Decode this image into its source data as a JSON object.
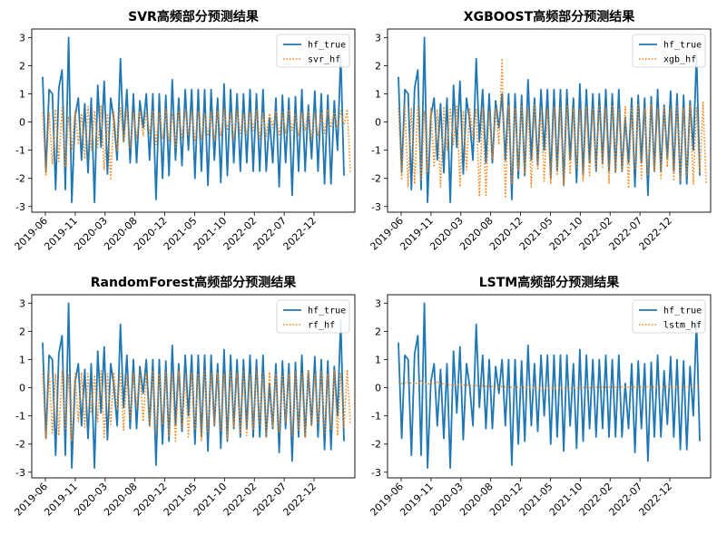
{
  "chart_data": [
    {
      "type": "line",
      "title": "SVR高频部分预测结果",
      "xlabel": "",
      "ylabel": "",
      "ylim": [
        -3.2,
        3.3
      ],
      "yticks": [
        -3,
        -2,
        -1,
        0,
        1,
        2,
        3
      ],
      "x_tick_labels": [
        "2019-06",
        "2019-11",
        "2020-03",
        "2020-08",
        "2020-12",
        "2021-05",
        "2021-10",
        "2022-02",
        "2022-07",
        "2022-12"
      ],
      "legend": "top-right",
      "series": [
        {
          "name": "hf_true",
          "style": "solid",
          "color": "#1f77b4",
          "values": [
            1.6,
            -1.8,
            1.15,
            1.0,
            -2.4,
            1.2,
            1.85,
            -2.4,
            3.0,
            -2.85,
            0.2,
            0.85,
            -1.35,
            0.65,
            -1.8,
            0.85,
            -2.85,
            1.3,
            -0.9,
            1.45,
            -1.85,
            0.85,
            0.05,
            -1.35,
            2.25,
            -0.7,
            1.15,
            -1.45,
            1.0,
            -1.45,
            0.75,
            -0.2,
            1.0,
            -1.35,
            1.0,
            -2.75,
            1.0,
            -2.0,
            0.95,
            -1.9,
            1.5,
            -1.35,
            0.85,
            -1.55,
            1.15,
            -1.0,
            1.15,
            -2.0,
            1.15,
            -1.75,
            1.15,
            -2.25,
            1.15,
            -1.35,
            0.85,
            -2.15,
            1.35,
            -1.9,
            1.15,
            -1.45,
            1.0,
            -1.75,
            1.0,
            -1.45,
            1.15,
            -1.75,
            1.0,
            -1.75,
            1.15,
            -1.75,
            0.15,
            -1.45,
            0.85,
            -2.3,
            0.95,
            -1.45,
            0.85,
            -2.6,
            0.9,
            -1.75,
            1.15,
            -1.75,
            0.6,
            -1.3,
            1.1,
            -1.75,
            1.0,
            -2.2,
            0.95,
            -2.2,
            0.75,
            -1.0,
            2.4,
            -1.9
          ]
        },
        {
          "name": "svr_hf",
          "style": "dotted",
          "color": "#ff7f0e",
          "values": [
            0.35,
            -1.9,
            0.35,
            -1.5,
            0.45,
            -1.4,
            0.5,
            -1.6,
            0.2,
            -1.0,
            0.4,
            -0.8,
            0.3,
            -1.3,
            0.55,
            -1.0,
            0.4,
            -0.9,
            0.6,
            -1.7,
            0.3,
            -2.05,
            0.35,
            -1.0,
            0.5,
            -0.7,
            0.45,
            -0.9,
            0.35,
            -0.6,
            0.4,
            -0.5,
            0.35,
            -0.4,
            0.4,
            -0.8,
            0.35,
            -0.6,
            0.45,
            -0.7,
            0.3,
            -0.9,
            0.4,
            -0.6,
            0.45,
            -0.5,
            0.35,
            -0.7,
            0.4,
            -0.6,
            0.3,
            -0.5,
            0.35,
            -0.7,
            0.4,
            -0.5,
            0.45,
            -0.3,
            0.35,
            -0.6,
            0.4,
            -0.4,
            0.3,
            -0.5,
            0.35,
            -0.3,
            0.45,
            -0.6,
            0.35,
            -0.5,
            0.3,
            -0.2,
            0.4,
            -0.5,
            0.35,
            -0.4,
            0.45,
            -0.3,
            0.3,
            -0.5,
            0.35,
            -0.3,
            0.4,
            -0.6,
            0.3,
            -0.5,
            0.35,
            -0.4,
            0.45,
            -0.2,
            0.35,
            -0.2,
            0.4,
            -0.1,
            0.45,
            -1.8
          ]
        }
      ]
    },
    {
      "type": "line",
      "title": "XGBOOST高频部分预测结果",
      "xlabel": "",
      "ylabel": "",
      "ylim": [
        -3.2,
        3.3
      ],
      "yticks": [
        -3,
        -2,
        -1,
        0,
        1,
        2,
        3
      ],
      "x_tick_labels": [
        "2019-06",
        "2019-11",
        "2020-03",
        "2020-08",
        "2020-12",
        "2021-05",
        "2021-10",
        "2022-02",
        "2022-07",
        "2022-12"
      ],
      "legend": "top-right",
      "series": [
        {
          "name": "hf_true",
          "style": "solid",
          "color": "#1f77b4",
          "values": [
            1.6,
            -1.8,
            1.15,
            1.0,
            -2.4,
            1.2,
            1.85,
            -2.4,
            3.0,
            -2.85,
            0.2,
            0.85,
            -1.35,
            0.65,
            -1.8,
            0.85,
            -2.85,
            1.3,
            -0.9,
            1.45,
            -1.85,
            0.85,
            0.05,
            -1.35,
            2.25,
            -0.7,
            1.15,
            -1.45,
            1.0,
            -1.45,
            0.75,
            -0.2,
            1.0,
            -1.35,
            1.0,
            -2.75,
            1.0,
            -2.0,
            0.95,
            -1.9,
            1.5,
            -1.35,
            0.85,
            -1.55,
            1.15,
            -1.0,
            1.15,
            -2.0,
            1.15,
            -1.75,
            1.15,
            -2.25,
            1.15,
            -1.35,
            0.85,
            -2.15,
            1.35,
            -1.9,
            1.15,
            -1.45,
            1.0,
            -1.75,
            1.0,
            -1.45,
            1.15,
            -1.75,
            1.0,
            -1.75,
            1.15,
            -1.75,
            0.15,
            -1.45,
            0.85,
            -2.3,
            0.95,
            -1.45,
            0.85,
            -2.6,
            0.9,
            -1.75,
            1.15,
            -1.75,
            0.6,
            -1.3,
            1.1,
            -1.75,
            1.0,
            -2.2,
            0.95,
            -2.2,
            0.75,
            -1.0,
            2.4,
            -1.9
          ]
        },
        {
          "name": "xgb_hf",
          "style": "dotted",
          "color": "#ff7f0e",
          "values": [
            0.5,
            -2.05,
            0.6,
            -2.3,
            0.5,
            -2.2,
            0.6,
            -2.1,
            0.4,
            -1.8,
            0.5,
            -1.6,
            0.45,
            -2.3,
            0.55,
            -1.0,
            0.5,
            -0.8,
            0.6,
            -2.3,
            0.4,
            -1.7,
            0.5,
            -0.6,
            0.45,
            -2.65,
            0.5,
            -2.6,
            0.4,
            -1.3,
            0.5,
            -0.8,
            2.25,
            -2.7,
            0.6,
            -2.2,
            0.5,
            -1.75,
            0.6,
            -1.8,
            0.5,
            -2.3,
            0.6,
            -1.7,
            0.5,
            -2.1,
            0.45,
            -2.2,
            0.55,
            -1.9,
            0.5,
            -2.25,
            0.6,
            -1.85,
            0.5,
            -1.6,
            0.45,
            -2.1,
            0.55,
            -1.9,
            0.5,
            -1.7,
            0.6,
            -1.6,
            0.5,
            -2.2,
            0.6,
            -1.8,
            0.5,
            -1.75,
            0.55,
            -2.35,
            0.5,
            -1.7,
            0.6,
            -2.0,
            0.5,
            -1.9,
            0.6,
            -1.75,
            0.5,
            -2.0,
            0.55,
            -1.6,
            0.5,
            -2.1,
            0.6,
            -2.05,
            0.5,
            -1.9,
            0.6,
            -2.2,
            0.5,
            -1.8,
            0.7,
            -2.2
          ]
        }
      ]
    },
    {
      "type": "line",
      "title": "RandomForest高频部分预测结果",
      "xlabel": "",
      "ylabel": "",
      "ylim": [
        -3.2,
        3.3
      ],
      "yticks": [
        -3,
        -2,
        -1,
        0,
        1,
        2,
        3
      ],
      "x_tick_labels": [
        "2019-06",
        "2019-11",
        "2020-03",
        "2020-08",
        "2020-12",
        "2021-05",
        "2021-10",
        "2022-02",
        "2022-07",
        "2022-12"
      ],
      "legend": "top-right",
      "series": [
        {
          "name": "hf_true",
          "style": "solid",
          "color": "#1f77b4",
          "values": [
            1.6,
            -1.8,
            1.15,
            1.0,
            -2.4,
            1.2,
            1.85,
            -2.4,
            3.0,
            -2.85,
            0.2,
            0.85,
            -1.35,
            0.65,
            -1.8,
            0.85,
            -2.85,
            1.3,
            -0.9,
            1.45,
            -1.85,
            0.85,
            0.05,
            -1.35,
            2.25,
            -0.7,
            1.15,
            -1.45,
            1.0,
            -1.45,
            0.75,
            -0.2,
            1.0,
            -1.35,
            1.0,
            -2.75,
            1.0,
            -2.0,
            0.95,
            -1.9,
            1.5,
            -1.35,
            0.85,
            -1.55,
            1.15,
            -1.0,
            1.15,
            -2.0,
            1.15,
            -1.75,
            1.15,
            -2.25,
            1.15,
            -1.35,
            0.85,
            -2.15,
            1.35,
            -1.9,
            1.15,
            -1.45,
            1.0,
            -1.75,
            1.0,
            -1.45,
            1.15,
            -1.75,
            1.0,
            -1.75,
            1.15,
            -1.75,
            0.15,
            -1.45,
            0.85,
            -2.3,
            0.95,
            -1.45,
            0.85,
            -2.6,
            0.9,
            -1.75,
            1.15,
            -1.75,
            0.6,
            -1.3,
            1.1,
            -1.75,
            1.0,
            -2.2,
            0.95,
            -2.2,
            0.75,
            -1.0,
            2.4,
            -1.9
          ]
        },
        {
          "name": "rf_hf",
          "style": "dotted",
          "color": "#ff7f0e",
          "values": [
            0.5,
            -1.85,
            0.55,
            -1.6,
            0.5,
            -1.7,
            0.6,
            -1.5,
            0.45,
            -1.9,
            0.5,
            -1.2,
            0.55,
            -1.4,
            0.5,
            -0.9,
            0.45,
            -1.2,
            0.6,
            -1.8,
            0.5,
            -1.3,
            0.55,
            -0.8,
            0.5,
            -1.5,
            0.45,
            -1.1,
            0.5,
            -0.7,
            0.55,
            -1.2,
            0.5,
            -1.4,
            0.6,
            -1.6,
            0.5,
            -1.3,
            0.55,
            -1.7,
            0.5,
            -1.9,
            0.6,
            -1.4,
            0.5,
            -1.8,
            0.55,
            -1.5,
            0.5,
            -1.9,
            0.6,
            -1.6,
            0.5,
            -1.3,
            0.55,
            -1.5,
            0.5,
            -1.8,
            0.6,
            -1.4,
            0.5,
            -1.6,
            0.55,
            -1.7,
            0.5,
            -1.5,
            0.6,
            -1.3,
            0.5,
            -1.8,
            0.55,
            -1.4,
            0.5,
            -1.6,
            0.45,
            -1.2,
            0.5,
            -1.7,
            0.55,
            -1.5,
            0.5,
            -1.8,
            0.6,
            -1.4,
            0.5,
            -1.3,
            0.55,
            -1.6,
            0.5,
            -1.5,
            0.6,
            -1.7,
            0.5,
            -1.4,
            0.65,
            -1.3
          ]
        }
      ]
    },
    {
      "type": "line",
      "title": "LSTM高频部分预测结果",
      "xlabel": "",
      "ylabel": "",
      "ylim": [
        -3.2,
        3.3
      ],
      "yticks": [
        -3,
        -2,
        -1,
        0,
        1,
        2,
        3
      ],
      "x_tick_labels": [
        "2019-06",
        "2019-11",
        "2020-03",
        "2020-08",
        "2020-12",
        "2021-05",
        "2021-10",
        "2022-02",
        "2022-07",
        "2022-12"
      ],
      "legend": "top-right",
      "series": [
        {
          "name": "hf_true",
          "style": "solid",
          "color": "#1f77b4",
          "values": [
            1.6,
            -1.8,
            1.15,
            1.0,
            -2.4,
            1.2,
            1.85,
            -2.4,
            3.0,
            -2.85,
            0.2,
            0.85,
            -1.35,
            0.65,
            -1.8,
            0.85,
            -2.85,
            1.3,
            -0.9,
            1.45,
            -1.85,
            0.85,
            0.05,
            -1.35,
            2.25,
            -0.7,
            1.15,
            -1.45,
            1.0,
            -1.45,
            0.75,
            -0.2,
            1.0,
            -1.35,
            1.0,
            -2.75,
            1.0,
            -2.0,
            0.95,
            -1.9,
            1.5,
            -1.35,
            0.85,
            -1.55,
            1.15,
            -1.0,
            1.15,
            -2.0,
            1.15,
            -1.75,
            1.15,
            -2.25,
            1.15,
            -1.35,
            0.85,
            -2.15,
            1.35,
            -1.9,
            1.15,
            -1.45,
            1.0,
            -1.75,
            1.0,
            -1.45,
            1.15,
            -1.75,
            1.0,
            -1.75,
            1.15,
            -1.75,
            0.15,
            -1.45,
            0.85,
            -2.3,
            0.95,
            -1.45,
            0.85,
            -2.6,
            0.9,
            -1.75,
            1.15,
            -1.75,
            0.6,
            -1.3,
            1.1,
            -1.75,
            1.0,
            -2.2,
            0.95,
            -2.2,
            0.75,
            -1.0,
            2.4,
            -1.9
          ]
        },
        {
          "name": "lstm_hf",
          "style": "dotted",
          "color": "#ff7f0e",
          "values": [
            0.2,
            0.15,
            0.18,
            0.22,
            0.15,
            0.2,
            0.12,
            0.25,
            0.15,
            0.1,
            0.18,
            0.14,
            0.2,
            0.12,
            0.15,
            0.1,
            0.12,
            0.08,
            0.1,
            0.12,
            0.1,
            0.08,
            0.1,
            0.06,
            0.08,
            0.05,
            0.07,
            0.05,
            0.06,
            0.04,
            0.05,
            0.03,
            0.04,
            0.02,
            0.03,
            0.02,
            0.02,
            0.01,
            0.02,
            0.0,
            0.01,
            0.0,
            -0.01,
            0.0,
            -0.01,
            -0.02,
            -0.01,
            -0.02,
            -0.01,
            -0.02,
            0.0,
            -0.01,
            0.0,
            -0.01,
            0.0,
            0.0,
            0.01,
            0.0,
            0.01,
            0.0,
            0.01,
            0.02,
            0.01,
            0.02,
            0.01,
            0.02,
            0.02,
            0.01,
            0.02,
            0.03,
            0.02,
            0.02,
            0.03,
            0.02,
            0.03,
            0.02,
            0.03,
            0.03,
            0.02,
            0.03,
            0.03,
            0.02,
            0.03,
            0.04,
            0.03,
            0.02,
            0.03,
            0.04,
            0.03,
            0.03,
            0.04,
            0.03,
            0.04,
            0.03
          ]
        }
      ]
    }
  ]
}
